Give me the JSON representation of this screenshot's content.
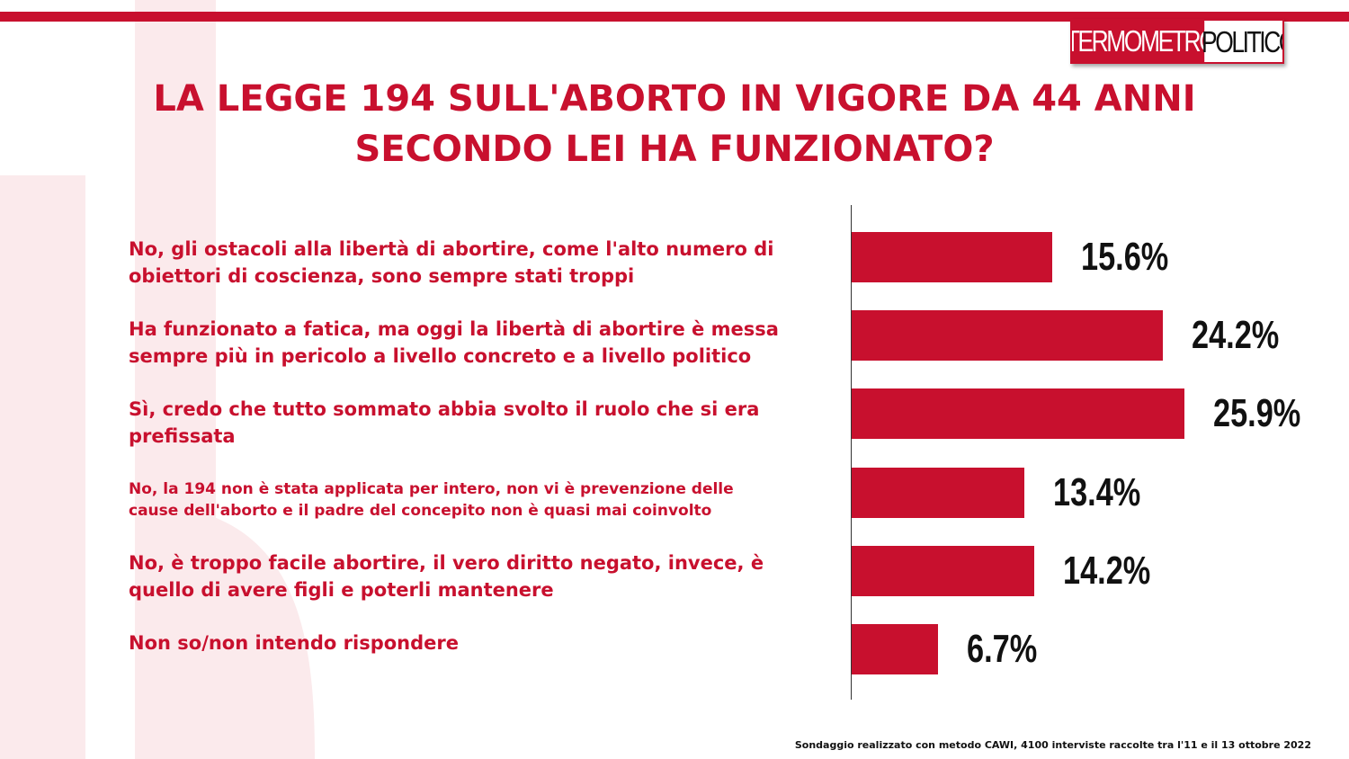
{
  "logo": {
    "part1": "TERMOMETRO",
    "part2": "POLITICO"
  },
  "title_lines": [
    "LA LEGGE 194 SULL'ABORTO IN VIGORE DA 44 ANNI",
    "SECONDO LEI HA FUNZIONATO?"
  ],
  "chart_data": {
    "type": "bar",
    "orientation": "horizontal",
    "title": "LA LEGGE 194 SULL'ABORTO IN VIGORE DA 44 ANNI SECONDO LEI HA FUNZIONATO?",
    "categories": [
      "No, gli ostacoli alla libertà  di abortire, come l'alto numero di obiettori di coscienza, sono sempre stati troppi",
      "Ha funzionato a fatica, ma oggi la libertà  di abortire è messa sempre più in pericolo a livello concreto e a livello politico",
      "Sì, credo che tutto sommato abbia svolto il ruolo che si era prefissata",
      "No, la 194 non è stata applicata per intero, non vi è prevenzione delle cause dell'aborto e il padre del concepito non è quasi mai coinvolto",
      "No, è troppo facile abortire, il vero diritto negato, invece, è quello di avere figli e poterli mantenere",
      "Non so/non intendo rispondere"
    ],
    "label_lines": [
      [
        "No, gli ostacoli alla libertà  di abortire, come l'alto numero di",
        "obiettori di coscienza, sono sempre stati troppi"
      ],
      [
        "Ha funzionato a fatica, ma oggi la libertà  di abortire è messa",
        "sempre più in pericolo a livello concreto e a livello politico"
      ],
      [
        "Sì, credo che tutto sommato abbia svolto il ruolo che si era",
        "prefissata"
      ],
      [
        "No, la 194 non è stata applicata per intero, non vi è prevenzione delle",
        "cause dell'aborto e il padre del concepito non è quasi mai coinvolto"
      ],
      [
        "No, è troppo facile abortire, il vero diritto negato, invece, è",
        "quello di avere figli e poterli mantenere"
      ],
      [
        "Non so/non intendo rispondere"
      ]
    ],
    "values": [
      15.6,
      24.2,
      25.9,
      13.4,
      14.2,
      6.7
    ],
    "value_labels": [
      "15.6%",
      "24.2%",
      "25.9%",
      "13.4%",
      "14.2%",
      "6.7%"
    ],
    "unit": "%",
    "bar_color": "#c8102e",
    "grid": false,
    "legend": "none"
  },
  "footer": "Sondaggio realizzato con metodo CAWI, 4100 interviste raccolte tra l'11 e il 13 ottobre 2022"
}
